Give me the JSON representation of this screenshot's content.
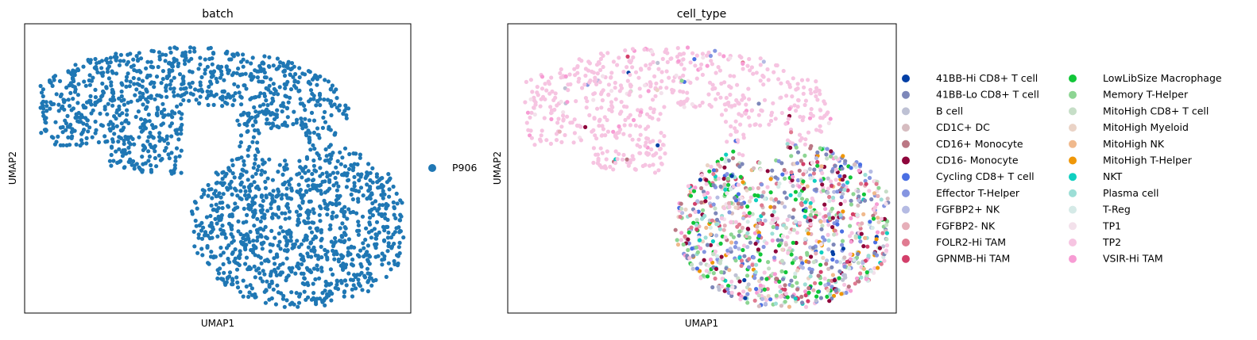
{
  "chart_data": [
    {
      "type": "scatter",
      "title": "batch",
      "xlabel": "UMAP1",
      "ylabel": "UMAP2",
      "grid": false,
      "legend_placement": "right",
      "xlim": [
        0,
        1
      ],
      "ylim": [
        0,
        1
      ],
      "series": [
        {
          "name": "P906",
          "color": "#1f77b4",
          "point_count": 2000
        }
      ]
    },
    {
      "type": "scatter",
      "title": "cell_type",
      "xlabel": "UMAP1",
      "ylabel": "UMAP2",
      "grid": false,
      "legend_placement": "right, two columns",
      "xlim": [
        0,
        1
      ],
      "ylim": [
        0,
        1
      ],
      "series": [
        {
          "name": "41BB-Hi CD8+ T cell",
          "color": "#023fa5",
          "weight": 1,
          "region": "lower"
        },
        {
          "name": "41BB-Lo CD8+ T cell",
          "color": "#7d87b9",
          "weight": 7,
          "region": "lower"
        },
        {
          "name": "B cell",
          "color": "#bec1d4",
          "weight": 3,
          "region": "lower"
        },
        {
          "name": "CD1C+ DC",
          "color": "#d6bcc0",
          "weight": 2,
          "region": "lower"
        },
        {
          "name": "CD16+ Monocyte",
          "color": "#bb7784",
          "weight": 3,
          "region": "lower"
        },
        {
          "name": "CD16- Monocyte",
          "color": "#8e063b",
          "weight": 6,
          "region": "lower"
        },
        {
          "name": "Cycling CD8+ T cell",
          "color": "#4a6fe3",
          "weight": 3,
          "region": "lower"
        },
        {
          "name": "Effector T-Helper",
          "color": "#8595e1",
          "weight": 5,
          "region": "lower"
        },
        {
          "name": "FGFBP2+ NK",
          "color": "#b5bbe3",
          "weight": 3,
          "region": "lower"
        },
        {
          "name": "FGFBP2- NK",
          "color": "#e6afb9",
          "weight": 3,
          "region": "lower"
        },
        {
          "name": "FOLR2-Hi TAM",
          "color": "#e07b91",
          "weight": 5,
          "region": "lower"
        },
        {
          "name": "GPNMB-Hi TAM",
          "color": "#d33f6a",
          "weight": 4,
          "region": "lower"
        },
        {
          "name": "LowLibSize Macrophage",
          "color": "#11c638",
          "weight": 6,
          "region": "lower"
        },
        {
          "name": "Memory T-Helper",
          "color": "#8dd593",
          "weight": 7,
          "region": "lower"
        },
        {
          "name": "MitoHigh CD8+ T cell",
          "color": "#c6dec7",
          "weight": 4,
          "region": "lower"
        },
        {
          "name": "MitoHigh Myeloid",
          "color": "#ead3c6",
          "weight": 3,
          "region": "lower"
        },
        {
          "name": "MitoHigh NK",
          "color": "#f0b98d",
          "weight": 3,
          "region": "lower"
        },
        {
          "name": "MitoHigh T-Helper",
          "color": "#ef9708",
          "weight": 3,
          "region": "lower"
        },
        {
          "name": "NKT",
          "color": "#0fcfc0",
          "weight": 2,
          "region": "lower"
        },
        {
          "name": "Plasma cell",
          "color": "#9cded6",
          "weight": 4,
          "region": "lower"
        },
        {
          "name": "T-Reg",
          "color": "#d5eae7",
          "weight": 3,
          "region": "lower"
        },
        {
          "name": "TP1",
          "color": "#f3e1eb",
          "weight": 3,
          "region": "all"
        },
        {
          "name": "TP2",
          "color": "#f6c4e1",
          "weight": 30,
          "region": "upper"
        },
        {
          "name": "VSIR-Hi TAM",
          "color": "#f79cd4",
          "weight": 3,
          "region": "all"
        }
      ]
    }
  ]
}
